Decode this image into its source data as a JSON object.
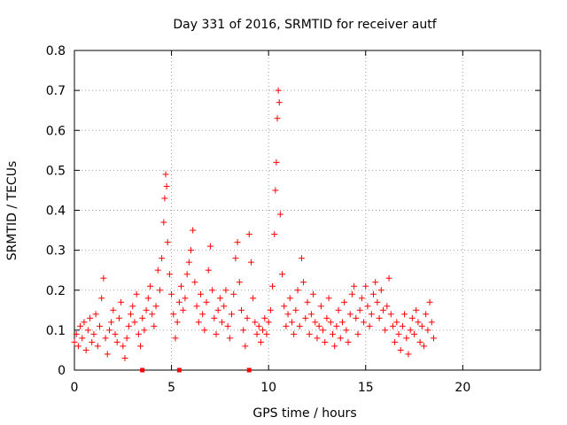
{
  "chart_data": {
    "type": "scatter",
    "title": "Day 331 of 2016, SRMTID for receiver autf",
    "xlabel": "GPS time / hours",
    "ylabel": "SRMTID / TECUs",
    "xlim": [
      0,
      24
    ],
    "ylim": [
      0,
      0.8
    ],
    "xticks": [
      0,
      5,
      10,
      15,
      20
    ],
    "yticks": [
      0,
      0.1,
      0.2,
      0.3,
      0.4,
      0.5,
      0.6,
      0.7,
      0.8
    ],
    "grid": true,
    "marker": "+",
    "color": "#ff0000",
    "series": [
      {
        "name": "SRMTID",
        "points": [
          [
            0.0,
            0.07
          ],
          [
            0.1,
            0.09
          ],
          [
            0.2,
            0.06
          ],
          [
            0.3,
            0.11
          ],
          [
            0.4,
            0.08
          ],
          [
            0.5,
            0.12
          ],
          [
            0.6,
            0.05
          ],
          [
            0.7,
            0.1
          ],
          [
            0.8,
            0.13
          ],
          [
            0.9,
            0.07
          ],
          [
            1.0,
            0.09
          ],
          [
            1.1,
            0.14
          ],
          [
            1.2,
            0.06
          ],
          [
            1.3,
            0.11
          ],
          [
            1.4,
            0.18
          ],
          [
            1.5,
            0.23
          ],
          [
            1.6,
            0.08
          ],
          [
            1.7,
            0.04
          ],
          [
            1.8,
            0.1
          ],
          [
            1.9,
            0.12
          ],
          [
            2.0,
            0.15
          ],
          [
            2.1,
            0.09
          ],
          [
            2.2,
            0.07
          ],
          [
            2.3,
            0.13
          ],
          [
            2.4,
            0.17
          ],
          [
            2.5,
            0.06
          ],
          [
            2.6,
            0.03
          ],
          [
            2.7,
            0.08
          ],
          [
            2.8,
            0.11
          ],
          [
            2.9,
            0.14
          ],
          [
            3.0,
            0.16
          ],
          [
            3.1,
            0.12
          ],
          [
            3.2,
            0.19
          ],
          [
            3.3,
            0.09
          ],
          [
            3.4,
            0.06
          ],
          [
            3.5,
            0.13
          ],
          [
            3.6,
            0.1
          ],
          [
            3.7,
            0.15
          ],
          [
            3.8,
            0.18
          ],
          [
            3.9,
            0.21
          ],
          [
            4.0,
            0.14
          ],
          [
            4.1,
            0.11
          ],
          [
            4.2,
            0.16
          ],
          [
            4.3,
            0.25
          ],
          [
            4.4,
            0.2
          ],
          [
            4.5,
            0.28
          ],
          [
            4.6,
            0.37
          ],
          [
            4.65,
            0.43
          ],
          [
            4.7,
            0.49
          ],
          [
            4.75,
            0.46
          ],
          [
            4.8,
            0.32
          ],
          [
            4.9,
            0.24
          ],
          [
            5.0,
            0.19
          ],
          [
            5.1,
            0.14
          ],
          [
            5.2,
            0.08
          ],
          [
            5.3,
            0.12
          ],
          [
            5.4,
            0.17
          ],
          [
            5.5,
            0.21
          ],
          [
            5.6,
            0.15
          ],
          [
            5.7,
            0.18
          ],
          [
            5.8,
            0.24
          ],
          [
            5.9,
            0.27
          ],
          [
            6.0,
            0.3
          ],
          [
            6.1,
            0.35
          ],
          [
            6.2,
            0.22
          ],
          [
            6.3,
            0.16
          ],
          [
            6.4,
            0.12
          ],
          [
            6.5,
            0.19
          ],
          [
            6.6,
            0.14
          ],
          [
            6.7,
            0.1
          ],
          [
            6.8,
            0.17
          ],
          [
            6.9,
            0.25
          ],
          [
            7.0,
            0.31
          ],
          [
            7.1,
            0.2
          ],
          [
            7.2,
            0.13
          ],
          [
            7.3,
            0.09
          ],
          [
            7.4,
            0.15
          ],
          [
            7.5,
            0.18
          ],
          [
            7.6,
            0.12
          ],
          [
            7.7,
            0.16
          ],
          [
            7.8,
            0.2
          ],
          [
            7.9,
            0.11
          ],
          [
            8.0,
            0.08
          ],
          [
            8.1,
            0.14
          ],
          [
            8.2,
            0.19
          ],
          [
            8.3,
            0.28
          ],
          [
            8.4,
            0.32
          ],
          [
            8.5,
            0.22
          ],
          [
            8.6,
            0.15
          ],
          [
            8.7,
            0.1
          ],
          [
            8.8,
            0.06
          ],
          [
            8.9,
            0.13
          ],
          [
            9.0,
            0.34
          ],
          [
            9.1,
            0.27
          ],
          [
            9.2,
            0.18
          ],
          [
            9.3,
            0.12
          ],
          [
            9.4,
            0.09
          ],
          [
            9.5,
            0.11
          ],
          [
            9.6,
            0.07
          ],
          [
            9.7,
            0.1
          ],
          [
            9.8,
            0.13
          ],
          [
            9.9,
            0.09
          ],
          [
            10.0,
            0.12
          ],
          [
            10.1,
            0.15
          ],
          [
            10.2,
            0.21
          ],
          [
            10.3,
            0.34
          ],
          [
            10.35,
            0.45
          ],
          [
            10.4,
            0.52
          ],
          [
            10.45,
            0.63
          ],
          [
            10.5,
            0.7
          ],
          [
            10.55,
            0.67
          ],
          [
            10.6,
            0.39
          ],
          [
            10.7,
            0.24
          ],
          [
            10.8,
            0.16
          ],
          [
            10.9,
            0.11
          ],
          [
            11.0,
            0.14
          ],
          [
            11.1,
            0.18
          ],
          [
            11.2,
            0.12
          ],
          [
            11.3,
            0.09
          ],
          [
            11.4,
            0.15
          ],
          [
            11.5,
            0.2
          ],
          [
            11.6,
            0.11
          ],
          [
            11.7,
            0.28
          ],
          [
            11.8,
            0.22
          ],
          [
            11.9,
            0.13
          ],
          [
            12.0,
            0.17
          ],
          [
            12.1,
            0.09
          ],
          [
            12.2,
            0.14
          ],
          [
            12.3,
            0.19
          ],
          [
            12.4,
            0.12
          ],
          [
            12.5,
            0.08
          ],
          [
            12.6,
            0.11
          ],
          [
            12.7,
            0.16
          ],
          [
            12.8,
            0.1
          ],
          [
            12.9,
            0.07
          ],
          [
            13.0,
            0.13
          ],
          [
            13.1,
            0.18
          ],
          [
            13.2,
            0.12
          ],
          [
            13.3,
            0.09
          ],
          [
            13.4,
            0.06
          ],
          [
            13.5,
            0.11
          ],
          [
            13.6,
            0.15
          ],
          [
            13.7,
            0.08
          ],
          [
            13.8,
            0.12
          ],
          [
            13.9,
            0.17
          ],
          [
            14.0,
            0.1
          ],
          [
            14.1,
            0.07
          ],
          [
            14.2,
            0.14
          ],
          [
            14.3,
            0.19
          ],
          [
            14.4,
            0.21
          ],
          [
            14.5,
            0.13
          ],
          [
            14.6,
            0.09
          ],
          [
            14.7,
            0.15
          ],
          [
            14.8,
            0.18
          ],
          [
            14.9,
            0.12
          ],
          [
            15.0,
            0.21
          ],
          [
            15.1,
            0.16
          ],
          [
            15.2,
            0.11
          ],
          [
            15.3,
            0.14
          ],
          [
            15.4,
            0.19
          ],
          [
            15.5,
            0.22
          ],
          [
            15.6,
            0.17
          ],
          [
            15.7,
            0.13
          ],
          [
            15.8,
            0.2
          ],
          [
            15.9,
            0.15
          ],
          [
            16.0,
            0.1
          ],
          [
            16.1,
            0.16
          ],
          [
            16.2,
            0.23
          ],
          [
            16.3,
            0.14
          ],
          [
            16.4,
            0.11
          ],
          [
            16.5,
            0.07
          ],
          [
            16.6,
            0.12
          ],
          [
            16.7,
            0.09
          ],
          [
            16.8,
            0.05
          ],
          [
            16.9,
            0.11
          ],
          [
            17.0,
            0.14
          ],
          [
            17.1,
            0.08
          ],
          [
            17.2,
            0.04
          ],
          [
            17.3,
            0.1
          ],
          [
            17.4,
            0.13
          ],
          [
            17.5,
            0.09
          ],
          [
            17.6,
            0.15
          ],
          [
            17.7,
            0.12
          ],
          [
            17.8,
            0.07
          ],
          [
            17.9,
            0.11
          ],
          [
            18.0,
            0.06
          ],
          [
            18.1,
            0.14
          ],
          [
            18.2,
            0.1
          ],
          [
            18.3,
            0.17
          ],
          [
            18.4,
            0.12
          ],
          [
            18.5,
            0.08
          ]
        ]
      }
    ],
    "zero_markers": [
      3.5,
      5.4,
      9.0
    ]
  }
}
